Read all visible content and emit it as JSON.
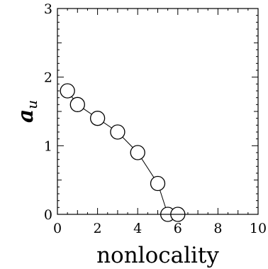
{
  "chart_data": {
    "type": "line",
    "title": "",
    "xlabel": "nonlocality",
    "ylabel_main": "a",
    "ylabel_sub": "u",
    "xlim": [
      0,
      10
    ],
    "ylim": [
      0,
      3
    ],
    "x_ticks": [
      "0",
      "2",
      "4",
      "6",
      "8",
      "10"
    ],
    "y_ticks": [
      "0",
      "1",
      "2",
      "3"
    ],
    "grid": false,
    "legend": "none",
    "marker": "open-circle",
    "line_style": "solid-thin",
    "colors": {
      "line": "#000000",
      "marker_fill": "#ffffff",
      "marker_edge": "#000000"
    },
    "series": [
      {
        "x": [
          0.5,
          1.0,
          2.0,
          3.0,
          4.0,
          5.0,
          5.5,
          6.0
        ],
        "values": [
          1.8,
          1.6,
          1.4,
          1.2,
          0.9,
          0.45,
          0.0,
          0.0
        ]
      }
    ]
  }
}
